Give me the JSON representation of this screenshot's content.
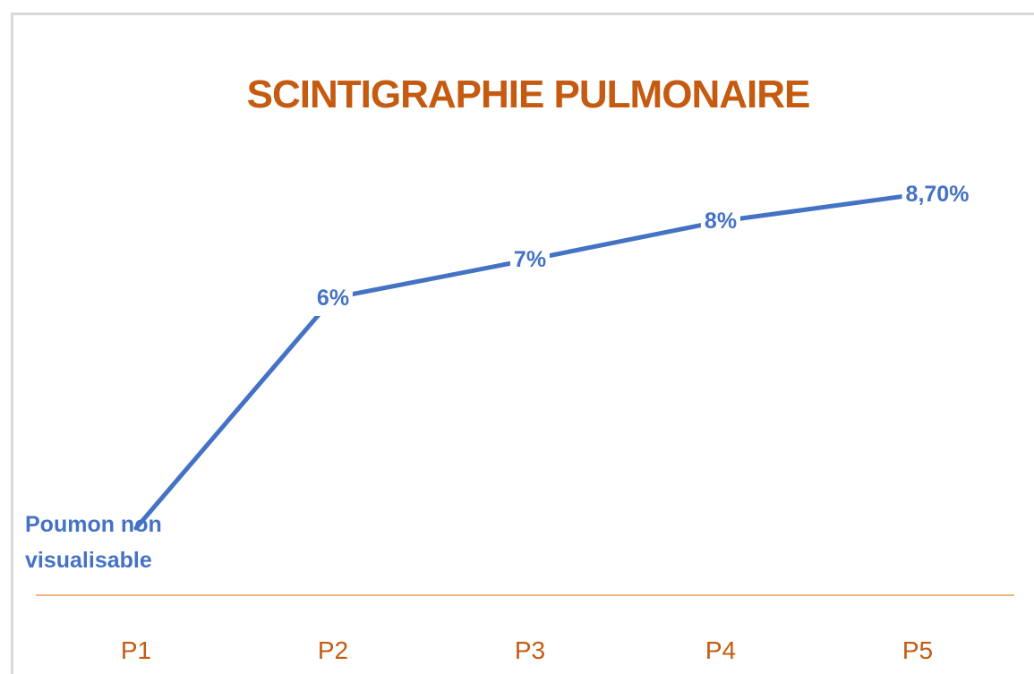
{
  "chart_data": {
    "type": "line",
    "title": "SCINTIGRAPHIE PULMONAIRE",
    "categories": [
      "P1",
      "P2",
      "P3",
      "P4",
      "P5"
    ],
    "values": [
      0,
      6,
      7,
      8,
      8.7
    ],
    "value_labels": [
      "Poumon non visualisable",
      "6%",
      "7%",
      "8%",
      "8,70%"
    ],
    "color": "#4472c4",
    "ylim": [
      -1.75,
      9.8
    ]
  }
}
